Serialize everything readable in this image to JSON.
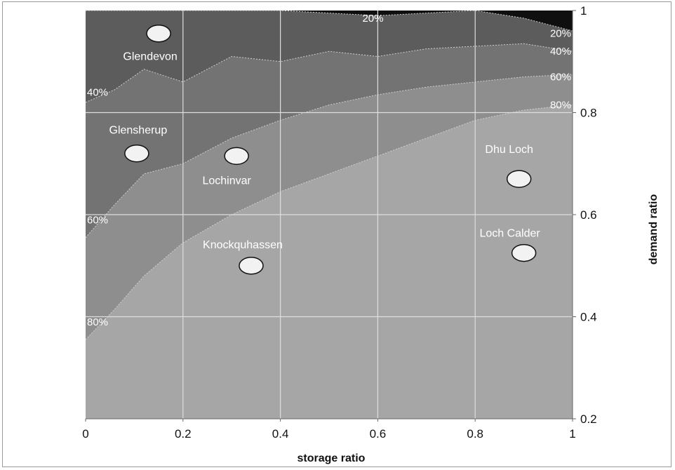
{
  "chart_data": {
    "type": "area",
    "xlabel": "storage ratio",
    "ylabel": "demand ratio",
    "xlim": [
      0,
      1
    ],
    "ylim": [
      0.2,
      1
    ],
    "x_ticks": [
      "0",
      "0.2",
      "0.4",
      "0.6",
      "0.8",
      "1"
    ],
    "y_ticks": [
      "0.2",
      "0.4",
      "0.6",
      "0.8",
      "1"
    ],
    "grid": true,
    "x": [
      0,
      0.06,
      0.12,
      0.2,
      0.3,
      0.4,
      0.5,
      0.6,
      0.7,
      0.8,
      0.9,
      1.0
    ],
    "series": [
      {
        "name": "80%",
        "color": "#a6a6a6",
        "values": [
          0.355,
          0.415,
          0.48,
          0.545,
          0.6,
          0.645,
          0.68,
          0.715,
          0.75,
          0.785,
          0.805,
          0.815
        ]
      },
      {
        "name": "60%",
        "color": "#8e8e8e",
        "values": [
          0.555,
          0.62,
          0.68,
          0.7,
          0.75,
          0.785,
          0.815,
          0.835,
          0.85,
          0.86,
          0.87,
          0.875
        ]
      },
      {
        "name": "40%",
        "color": "#737373",
        "values": [
          0.82,
          0.845,
          0.885,
          0.86,
          0.91,
          0.9,
          0.92,
          0.91,
          0.925,
          0.93,
          0.935,
          0.92
        ]
      },
      {
        "name": "20%",
        "color": "#5c5c5c",
        "values": [
          1.0,
          1.0,
          1.0,
          1.0,
          1.0,
          1.0,
          0.995,
          0.99,
          0.995,
          1.0,
          0.985,
          0.96
        ]
      }
    ],
    "contour_labels": [
      {
        "text": "20%",
        "x": 0.59,
        "y": 0.985
      },
      {
        "text": "20%",
        "x": 0.97,
        "y": 0.955
      },
      {
        "text": "40%",
        "x": 0.97,
        "y": 0.92
      },
      {
        "text": "60%",
        "x": 0.97,
        "y": 0.87
      },
      {
        "text": "80%",
        "x": 0.97,
        "y": 0.815
      },
      {
        "text": "40%",
        "x": 0.03,
        "y": 0.84
      },
      {
        "text": "60%",
        "x": 0.03,
        "y": 0.59
      },
      {
        "text": "80%",
        "x": 0.03,
        "y": 0.39
      }
    ],
    "sites": [
      {
        "name": "Glendevon",
        "x": 0.15,
        "y": 0.955
      },
      {
        "name": "Glensherup",
        "x": 0.105,
        "y": 0.72
      },
      {
        "name": "Lochinvar",
        "x": 0.31,
        "y": 0.715
      },
      {
        "name": "Knockquhassen",
        "x": 0.34,
        "y": 0.5
      },
      {
        "name": "Dhu Loch",
        "x": 0.89,
        "y": 0.67
      },
      {
        "name": "Loch Calder",
        "x": 0.9,
        "y": 0.525
      }
    ]
  }
}
